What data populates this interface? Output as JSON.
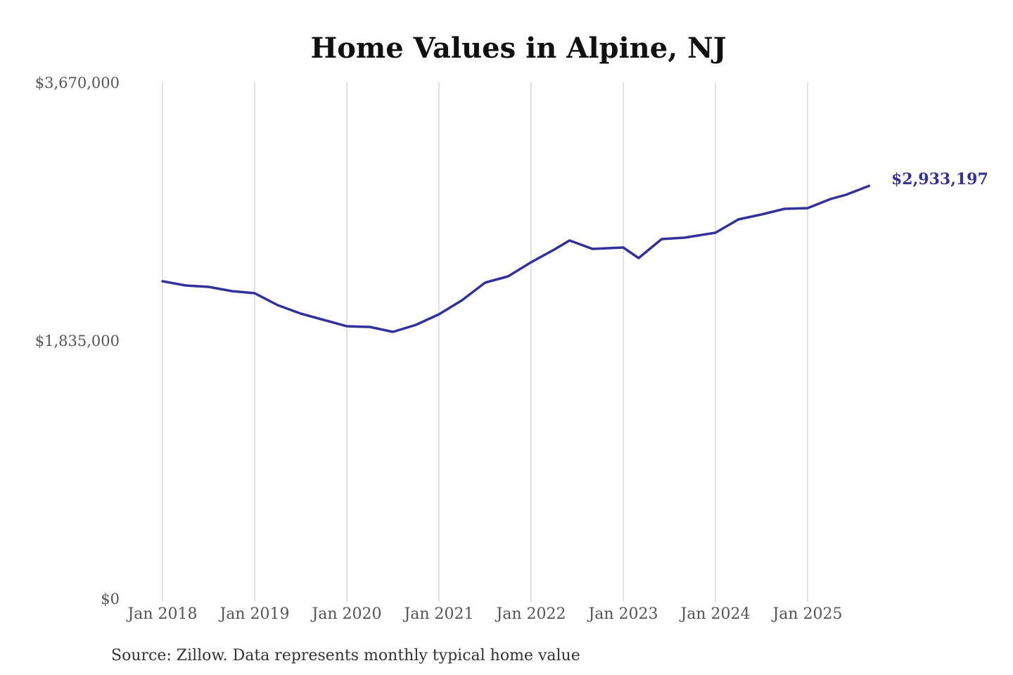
{
  "chart_data": {
    "type": "line",
    "title": "Home Values in Alpine, NJ",
    "xlabel": "",
    "ylabel": "",
    "ylim": [
      0,
      3670000
    ],
    "y_ticks": [
      {
        "value": 0,
        "label": "$0"
      },
      {
        "value": 1835000,
        "label": "$1,835,000"
      },
      {
        "value": 3670000,
        "label": "$3,670,000"
      }
    ],
    "x_ticks": [
      "Jan 2018",
      "Jan 2019",
      "Jan 2020",
      "Jan 2021",
      "Jan 2022",
      "Jan 2023",
      "Jan 2024",
      "Jan 2025"
    ],
    "grid": "vertical",
    "line_color": "#33309b",
    "end_label": "$2,933,197",
    "source": "Source: Zillow. Data represents monthly typical home value",
    "series": [
      {
        "x": [
          "2018-01",
          "2018-04",
          "2018-07",
          "2018-10",
          "2019-01",
          "2019-04",
          "2019-07",
          "2019-10",
          "2020-01",
          "2020-04",
          "2020-07",
          "2020-10",
          "2021-01",
          "2021-04",
          "2021-07",
          "2021-10",
          "2022-01",
          "2022-04",
          "2022-06",
          "2022-09",
          "2023-01",
          "2023-03",
          "2023-06",
          "2023-09",
          "2024-01",
          "2024-04",
          "2024-07",
          "2024-10",
          "2025-01",
          "2025-04",
          "2025-06",
          "2025-09"
        ],
        "values": [
          2255000,
          2225000,
          2215000,
          2185000,
          2170000,
          2085000,
          2025000,
          1980000,
          1935000,
          1930000,
          1895000,
          1945000,
          2020000,
          2120000,
          2245000,
          2290000,
          2390000,
          2480000,
          2545000,
          2485000,
          2495000,
          2420000,
          2555000,
          2565000,
          2600000,
          2695000,
          2730000,
          2770000,
          2775000,
          2840000,
          2870000,
          2933197
        ]
      }
    ]
  }
}
